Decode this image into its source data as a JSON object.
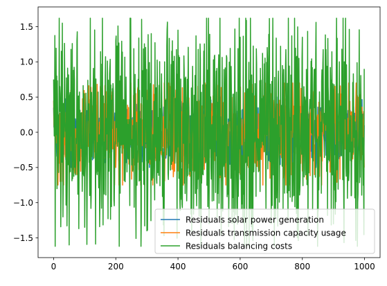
{
  "chart_data": {
    "type": "line",
    "title": "",
    "xlabel": "",
    "ylabel": "",
    "xlim": [
      -50,
      1050
    ],
    "ylim": [
      -1.78,
      1.78
    ],
    "x_ticks": [
      0,
      200,
      400,
      600,
      800,
      1000
    ],
    "y_ticks": [
      -1.5,
      -1.0,
      -0.5,
      0.0,
      0.5,
      1.0,
      1.5
    ],
    "x_tick_labels": [
      "0",
      "200",
      "400",
      "600",
      "800",
      "1000"
    ],
    "y_tick_labels": [
      "−1.5",
      "−1.0",
      "−0.5",
      "0.0",
      "0.5",
      "1.0",
      "1.5"
    ],
    "grid": false,
    "legend_position": "lower-right",
    "n_points": 1000,
    "series": [
      {
        "name": "Residuals solar power generation",
        "color": "#1f77b4",
        "approx_range": [
          -0.5,
          0.5
        ],
        "sample_x": [
          0,
          25,
          50,
          75,
          100,
          150,
          200,
          300,
          400,
          500,
          600,
          700,
          800,
          900,
          1000
        ],
        "sample_y": [
          0.35,
          -0.3,
          0.45,
          -0.4,
          0.42,
          -0.35,
          0.3,
          -0.38,
          0.45,
          -0.4,
          0.38,
          -0.45,
          0.4,
          -0.42,
          0.1
        ]
      },
      {
        "name": "Residuals transmission capacity usage",
        "color": "#ff7f0e",
        "approx_range": [
          -0.75,
          0.7
        ],
        "sample_x": [
          0,
          25,
          50,
          75,
          100,
          150,
          200,
          300,
          400,
          500,
          600,
          700,
          800,
          900,
          1000
        ],
        "sample_y": [
          0.45,
          -0.7,
          0.5,
          -0.6,
          0.55,
          0.65,
          -0.5,
          0.6,
          -0.55,
          0.5,
          -0.6,
          0.55,
          -0.55,
          0.6,
          -0.5
        ]
      },
      {
        "name": "Residuals balancing costs",
        "color": "#2ca02c",
        "approx_range": [
          -1.62,
          1.62
        ],
        "sample_x": [
          0,
          5,
          25,
          50,
          75,
          100,
          200,
          300,
          400,
          500,
          600,
          700,
          800,
          900,
          910,
          1000
        ],
        "sample_y": [
          0.75,
          -1.62,
          1.15,
          -1.6,
          1.3,
          -1.35,
          1.3,
          -1.4,
          1.45,
          -1.3,
          1.35,
          -1.3,
          1.35,
          -1.3,
          1.62,
          0.9
        ]
      }
    ]
  }
}
